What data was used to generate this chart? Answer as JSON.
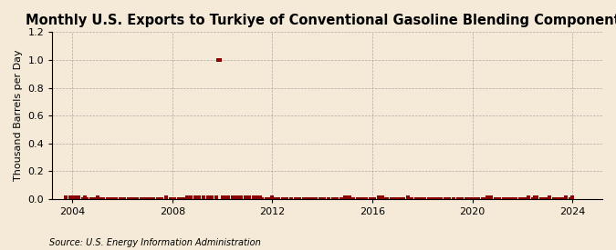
{
  "title": "Monthly U.S. Exports to Turkiye of Conventional Gasoline Blending Components",
  "ylabel": "Thousand Barrels per Day",
  "source": "Source: U.S. Energy Information Administration",
  "background_color": "#f5ead8",
  "ylim": [
    0,
    1.2
  ],
  "yticks": [
    0.0,
    0.2,
    0.4,
    0.6,
    0.8,
    1.0,
    1.2
  ],
  "xlim_start": 2003.2,
  "xlim_end": 2025.2,
  "xticks": [
    2004,
    2008,
    2012,
    2016,
    2020,
    2024
  ],
  "marker_color": "#8b0000",
  "marker_size": 2.5,
  "title_fontsize": 10.5,
  "axis_fontsize": 8,
  "source_fontsize": 7,
  "data_points": [
    [
      2003.75,
      0.01
    ],
    [
      2003.917,
      0.01
    ],
    [
      2004.0,
      0.01
    ],
    [
      2004.083,
      0.01
    ],
    [
      2004.25,
      0.01
    ],
    [
      2004.417,
      0.0
    ],
    [
      2004.5,
      0.01
    ],
    [
      2004.583,
      0.0
    ],
    [
      2004.75,
      0.0
    ],
    [
      2004.917,
      0.0
    ],
    [
      2005.0,
      0.01
    ],
    [
      2005.083,
      0.0
    ],
    [
      2005.25,
      0.0
    ],
    [
      2005.417,
      0.0
    ],
    [
      2005.5,
      0.0
    ],
    [
      2005.583,
      0.0
    ],
    [
      2005.75,
      0.0
    ],
    [
      2005.917,
      0.0
    ],
    [
      2006.0,
      0.0
    ],
    [
      2006.083,
      0.0
    ],
    [
      2006.25,
      0.0
    ],
    [
      2006.417,
      0.0
    ],
    [
      2006.5,
      0.0
    ],
    [
      2006.583,
      0.0
    ],
    [
      2006.75,
      0.0
    ],
    [
      2006.917,
      0.0
    ],
    [
      2007.0,
      0.0
    ],
    [
      2007.083,
      0.0
    ],
    [
      2007.25,
      0.0
    ],
    [
      2007.417,
      0.0
    ],
    [
      2007.5,
      0.0
    ],
    [
      2007.583,
      0.0
    ],
    [
      2007.75,
      0.01
    ],
    [
      2007.917,
      0.0
    ],
    [
      2008.0,
      0.0
    ],
    [
      2008.083,
      0.0
    ],
    [
      2008.25,
      0.0
    ],
    [
      2008.417,
      0.0
    ],
    [
      2008.5,
      0.0
    ],
    [
      2008.583,
      0.01
    ],
    [
      2008.75,
      0.01
    ],
    [
      2008.917,
      0.01
    ],
    [
      2009.0,
      0.01
    ],
    [
      2009.083,
      0.01
    ],
    [
      2009.25,
      0.01
    ],
    [
      2009.417,
      0.01
    ],
    [
      2009.5,
      0.01
    ],
    [
      2009.583,
      0.01
    ],
    [
      2009.75,
      0.01
    ],
    [
      2009.833,
      1.0
    ],
    [
      2009.917,
      1.0
    ],
    [
      2010.0,
      0.01
    ],
    [
      2010.083,
      0.01
    ],
    [
      2010.25,
      0.01
    ],
    [
      2010.417,
      0.01
    ],
    [
      2010.5,
      0.01
    ],
    [
      2010.583,
      0.01
    ],
    [
      2010.75,
      0.01
    ],
    [
      2010.917,
      0.01
    ],
    [
      2011.0,
      0.01
    ],
    [
      2011.083,
      0.01
    ],
    [
      2011.25,
      0.01
    ],
    [
      2011.417,
      0.01
    ],
    [
      2011.5,
      0.01
    ],
    [
      2011.583,
      0.0
    ],
    [
      2011.75,
      0.0
    ],
    [
      2011.917,
      0.0
    ],
    [
      2012.0,
      0.01
    ],
    [
      2012.083,
      0.0
    ],
    [
      2012.25,
      0.0
    ],
    [
      2012.417,
      0.0
    ],
    [
      2012.5,
      0.0
    ],
    [
      2012.583,
      0.0
    ],
    [
      2012.75,
      0.0
    ],
    [
      2012.917,
      0.0
    ],
    [
      2013.0,
      0.0
    ],
    [
      2013.083,
      0.0
    ],
    [
      2013.25,
      0.0
    ],
    [
      2013.417,
      0.0
    ],
    [
      2013.5,
      0.0
    ],
    [
      2013.583,
      0.0
    ],
    [
      2013.75,
      0.0
    ],
    [
      2013.917,
      0.0
    ],
    [
      2014.0,
      0.0
    ],
    [
      2014.083,
      0.0
    ],
    [
      2014.25,
      0.0
    ],
    [
      2014.417,
      0.0
    ],
    [
      2014.5,
      0.0
    ],
    [
      2014.583,
      0.0
    ],
    [
      2014.75,
      0.0
    ],
    [
      2014.917,
      0.01
    ],
    [
      2015.0,
      0.01
    ],
    [
      2015.083,
      0.01
    ],
    [
      2015.25,
      0.0
    ],
    [
      2015.417,
      0.0
    ],
    [
      2015.5,
      0.0
    ],
    [
      2015.583,
      0.0
    ],
    [
      2015.75,
      0.0
    ],
    [
      2015.917,
      0.0
    ],
    [
      2016.0,
      0.0
    ],
    [
      2016.083,
      0.0
    ],
    [
      2016.25,
      0.01
    ],
    [
      2016.417,
      0.01
    ],
    [
      2016.5,
      0.0
    ],
    [
      2016.583,
      0.0
    ],
    [
      2016.75,
      0.0
    ],
    [
      2016.917,
      0.0
    ],
    [
      2017.0,
      0.0
    ],
    [
      2017.083,
      0.0
    ],
    [
      2017.25,
      0.0
    ],
    [
      2017.417,
      0.01
    ],
    [
      2017.5,
      0.0
    ],
    [
      2017.583,
      0.0
    ],
    [
      2017.75,
      0.0
    ],
    [
      2017.917,
      0.0
    ],
    [
      2018.0,
      0.0
    ],
    [
      2018.083,
      0.0
    ],
    [
      2018.25,
      0.0
    ],
    [
      2018.417,
      0.0
    ],
    [
      2018.5,
      0.0
    ],
    [
      2018.583,
      0.0
    ],
    [
      2018.75,
      0.0
    ],
    [
      2018.917,
      0.0
    ],
    [
      2019.0,
      0.0
    ],
    [
      2019.083,
      0.0
    ],
    [
      2019.25,
      0.0
    ],
    [
      2019.417,
      0.0
    ],
    [
      2019.5,
      0.0
    ],
    [
      2019.583,
      0.0
    ],
    [
      2019.75,
      0.0
    ],
    [
      2019.917,
      0.0
    ],
    [
      2020.0,
      0.0
    ],
    [
      2020.083,
      0.0
    ],
    [
      2020.25,
      0.0
    ],
    [
      2020.417,
      0.0
    ],
    [
      2020.5,
      0.0
    ],
    [
      2020.583,
      0.01
    ],
    [
      2020.75,
      0.01
    ],
    [
      2020.917,
      0.0
    ],
    [
      2021.0,
      0.0
    ],
    [
      2021.083,
      0.0
    ],
    [
      2021.25,
      0.0
    ],
    [
      2021.417,
      0.0
    ],
    [
      2021.5,
      0.0
    ],
    [
      2021.583,
      0.0
    ],
    [
      2021.75,
      0.0
    ],
    [
      2021.917,
      0.0
    ],
    [
      2022.0,
      0.0
    ],
    [
      2022.083,
      0.0
    ],
    [
      2022.25,
      0.01
    ],
    [
      2022.417,
      0.0
    ],
    [
      2022.5,
      0.01
    ],
    [
      2022.583,
      0.01
    ],
    [
      2022.75,
      0.0
    ],
    [
      2022.917,
      0.0
    ],
    [
      2023.0,
      0.0
    ],
    [
      2023.083,
      0.01
    ],
    [
      2023.25,
      0.0
    ],
    [
      2023.417,
      0.0
    ],
    [
      2023.5,
      0.0
    ],
    [
      2023.583,
      0.0
    ],
    [
      2023.75,
      0.01
    ],
    [
      2023.917,
      0.0
    ],
    [
      2024.0,
      0.01
    ]
  ]
}
